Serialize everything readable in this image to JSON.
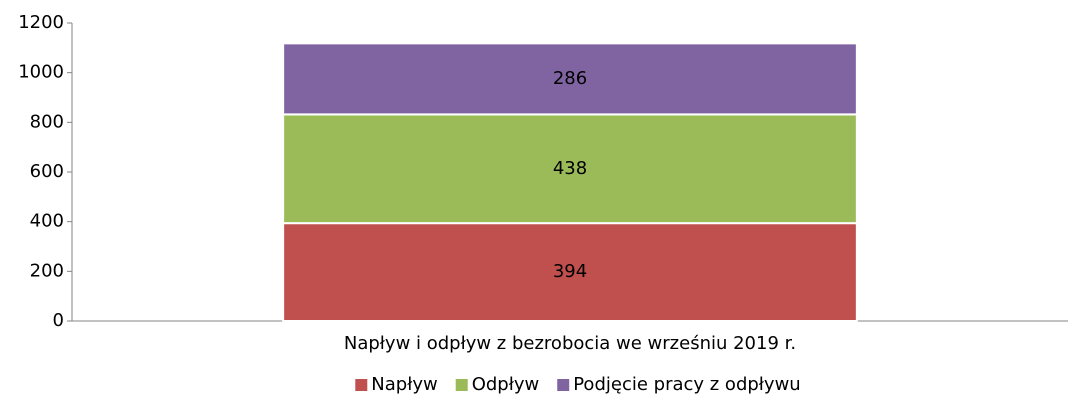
{
  "chart_data": {
    "type": "bar",
    "stacked": true,
    "categories": [
      "Napływ i odpływ z bezrobocia we wrześniu 2019 r."
    ],
    "series": [
      {
        "name": "Napływ",
        "color": "#c0504d",
        "values": [
          394
        ]
      },
      {
        "name": "Odpływ",
        "color": "#9bbb59",
        "values": [
          438
        ]
      },
      {
        "name": "Podjęcie pracy z odpływu",
        "color": "#8064a2",
        "values": [
          286
        ]
      }
    ],
    "ylim": [
      0,
      1200
    ],
    "yticks": [
      0,
      200,
      400,
      600,
      800,
      1000,
      1200
    ],
    "grid": false,
    "legend": "bottom"
  }
}
